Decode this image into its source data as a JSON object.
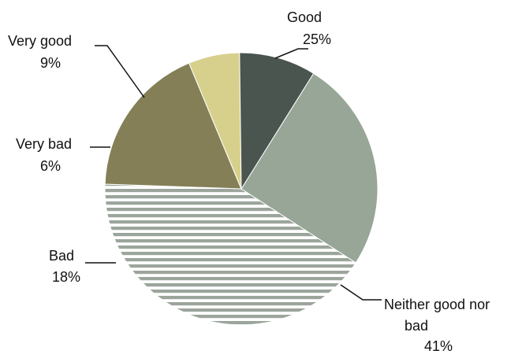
{
  "chart_data": {
    "type": "pie",
    "slices": [
      {
        "label": "Good",
        "value": 25,
        "value_label": "25%",
        "color": "#97a697",
        "pattern": "solid"
      },
      {
        "label": "Neither good nor bad",
        "value": 41,
        "value_label": "41%",
        "color": "#9ca59c",
        "pattern": "horizontal-stripes"
      },
      {
        "label": "Bad",
        "value": 18,
        "value_label": "18%",
        "color": "#847f57",
        "pattern": "solid"
      },
      {
        "label": "Very bad",
        "value": 6,
        "value_label": "6%",
        "color": "#d6d08c",
        "pattern": "solid"
      },
      {
        "label": "Very good",
        "value": 9,
        "value_label": "9%",
        "color": "#4a554f",
        "pattern": "solid"
      }
    ],
    "legend": "none",
    "label_style": "outside with leader lines"
  }
}
